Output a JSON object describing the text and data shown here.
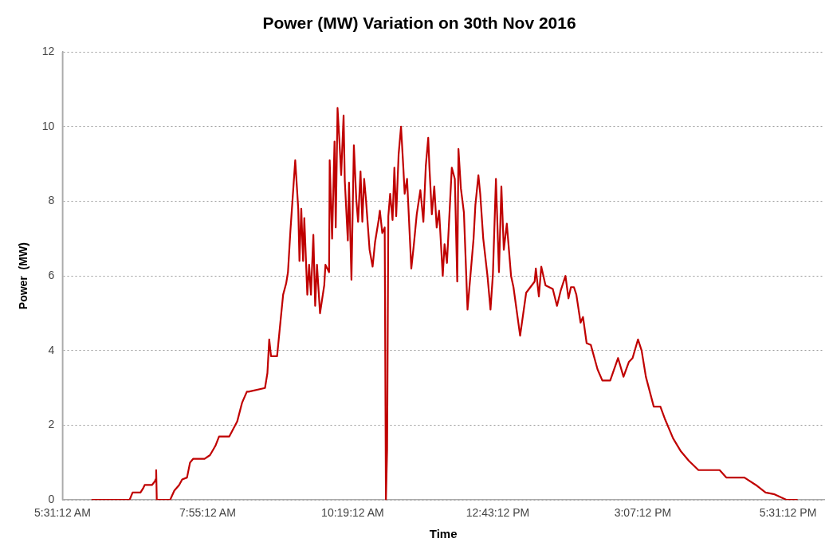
{
  "chart_data": {
    "type": "line",
    "title": "Power (MW) Variation on 30th Nov 2016",
    "xlabel": "Time",
    "ylabel": "Power  (MW)",
    "xlim": [
      5.52,
      18.12
    ],
    "ylim": [
      0,
      12
    ],
    "xticks": [
      {
        "value": 5.52,
        "label": "5:31:12 AM"
      },
      {
        "value": 7.92,
        "label": "7:55:12 AM"
      },
      {
        "value": 10.32,
        "label": "10:19:12 AM"
      },
      {
        "value": 12.72,
        "label": "12:43:12 PM"
      },
      {
        "value": 15.12,
        "label": "3:07:12 PM"
      },
      {
        "value": 17.52,
        "label": "5:31:12 PM"
      }
    ],
    "yticks": [
      0,
      2,
      4,
      6,
      8,
      10,
      12
    ],
    "grid": "y",
    "legend": false,
    "marker": "none",
    "line_style": "solid",
    "series": [
      {
        "color": "#c00000",
        "x": [
          6.0,
          6.63,
          6.68,
          6.81,
          6.85,
          6.88,
          7.0,
          7.05,
          7.06,
          7.07,
          7.08,
          7.3,
          7.37,
          7.45,
          7.5,
          7.58,
          7.63,
          7.68,
          7.87,
          7.96,
          8.05,
          8.11,
          8.28,
          8.41,
          8.49,
          8.57,
          8.6,
          8.87,
          8.91,
          8.94,
          8.97,
          9.07,
          9.13,
          9.17,
          9.22,
          9.25,
          9.29,
          9.37,
          9.42,
          9.44,
          9.47,
          9.5,
          9.52,
          9.57,
          9.6,
          9.63,
          9.67,
          9.7,
          9.73,
          9.78,
          9.85,
          9.87,
          9.93,
          9.94,
          9.98,
          10.02,
          10.04,
          10.07,
          10.1,
          10.13,
          10.17,
          10.19,
          10.24,
          10.26,
          10.3,
          10.34,
          10.38,
          10.41,
          10.45,
          10.48,
          10.51,
          10.54,
          10.6,
          10.65,
          10.69,
          10.75,
          10.77,
          10.81,
          10.85,
          10.87,
          10.89,
          10.91,
          10.94,
          10.98,
          11.01,
          11.04,
          11.08,
          11.12,
          11.16,
          11.18,
          11.22,
          11.29,
          11.33,
          11.38,
          11.44,
          11.49,
          11.53,
          11.57,
          11.59,
          11.63,
          11.67,
          11.71,
          11.75,
          11.81,
          11.84,
          11.88,
          11.96,
          12.01,
          12.05,
          12.07,
          12.11,
          12.16,
          12.22,
          12.32,
          12.35,
          12.4,
          12.43,
          12.48,
          12.55,
          12.6,
          12.64,
          12.69,
          12.74,
          12.78,
          12.82,
          12.87,
          12.94,
          12.98,
          13.09,
          13.19,
          13.26,
          13.33,
          13.35,
          13.4,
          13.44,
          13.51,
          13.63,
          13.7,
          13.76,
          13.84,
          13.89,
          13.93,
          13.98,
          14.02,
          14.09,
          14.13,
          14.19,
          14.26,
          14.37,
          14.45,
          14.58,
          14.71,
          14.8,
          14.89,
          14.95,
          15.04,
          15.1,
          15.17,
          15.3,
          15.41,
          15.49,
          15.62,
          15.75,
          15.88,
          16.04,
          16.39,
          16.5,
          16.8,
          16.99,
          17.15,
          17.3,
          17.5,
          17.68
        ],
        "values": [
          0,
          0,
          0.2,
          0.2,
          0.3,
          0.4,
          0.4,
          0.5,
          0.55,
          0.8,
          0,
          0,
          0.25,
          0.4,
          0.55,
          0.6,
          1.0,
          1.1,
          1.1,
          1.2,
          1.45,
          1.7,
          1.7,
          2.1,
          2.6,
          2.9,
          2.9,
          3.0,
          3.4,
          4.3,
          3.85,
          3.85,
          4.85,
          5.5,
          5.8,
          6.1,
          7.2,
          9.1,
          7.8,
          6.4,
          7.8,
          6.4,
          7.55,
          5.5,
          6.3,
          5.5,
          7.1,
          5.2,
          6.3,
          5.0,
          5.75,
          6.3,
          6.1,
          9.1,
          7.0,
          9.6,
          7.3,
          10.5,
          9.65,
          8.7,
          10.3,
          8.55,
          6.95,
          8.5,
          5.9,
          9.5,
          8.05,
          7.45,
          8.8,
          7.45,
          8.6,
          8.05,
          6.7,
          6.25,
          6.9,
          7.5,
          7.75,
          7.15,
          7.3,
          0,
          1.35,
          7.6,
          8.2,
          7.5,
          8.9,
          7.6,
          9.25,
          10.0,
          8.85,
          8.2,
          8.6,
          6.2,
          6.8,
          7.65,
          8.3,
          7.45,
          8.95,
          9.7,
          8.9,
          7.65,
          8.4,
          7.3,
          7.75,
          6.0,
          6.85,
          6.35,
          8.9,
          8.6,
          5.85,
          9.4,
          8.35,
          7.7,
          5.1,
          7.0,
          7.9,
          8.7,
          8.2,
          7.0,
          6.0,
          5.1,
          6.05,
          8.6,
          6.1,
          8.4,
          6.7,
          7.4,
          6.0,
          5.7,
          4.4,
          5.55,
          5.7,
          5.85,
          6.2,
          5.45,
          6.25,
          5.75,
          5.65,
          5.2,
          5.6,
          6.0,
          5.4,
          5.7,
          5.7,
          5.5,
          4.75,
          4.9,
          4.2,
          4.15,
          3.5,
          3.2,
          3.2,
          3.8,
          3.3,
          3.7,
          3.8,
          4.3,
          4.0,
          3.3,
          2.5,
          2.5,
          2.15,
          1.65,
          1.3,
          1.05,
          0.8,
          0.8,
          0.6,
          0.6,
          0.4,
          0.2,
          0.15,
          0,
          0
        ]
      }
    ]
  }
}
